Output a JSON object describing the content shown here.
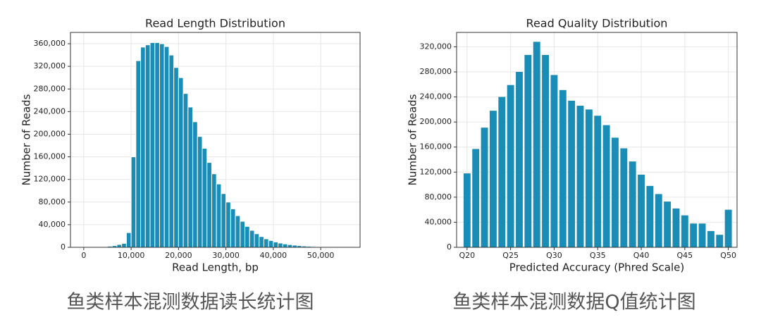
{
  "chart_data": [
    {
      "type": "histogram",
      "title": "Read Length Distribution",
      "x_label": "Read Length, bp",
      "y_label": "Number of Reads",
      "caption": "鱼类样本混测数据读长统计图",
      "color": "#1a8db6",
      "grid": true,
      "bins": [
        0,
        1000,
        2000,
        3000,
        4000,
        5000,
        6000,
        7000,
        8000,
        9000,
        10000,
        11000,
        12000,
        13000,
        14000,
        15000,
        16000,
        17000,
        18000,
        19000,
        20000,
        21000,
        22000,
        23000,
        24000,
        25000,
        26000,
        27000,
        28000,
        29000,
        30000,
        31000,
        32000,
        33000,
        34000,
        35000,
        36000,
        37000,
        38000,
        39000,
        40000,
        41000,
        42000,
        43000,
        44000,
        45000,
        46000,
        47000,
        48000,
        49000,
        50000,
        51000,
        52000,
        53000,
        54000,
        55000,
        56000
      ],
      "values": [
        0,
        0,
        200,
        500,
        1000,
        2000,
        3000,
        5000,
        7000,
        26000,
        160000,
        330000,
        354000,
        358000,
        362000,
        362000,
        360000,
        355000,
        340000,
        318000,
        300000,
        272000,
        248000,
        222000,
        196000,
        175000,
        150000,
        130000,
        112000,
        95000,
        80000,
        68000,
        56000,
        46000,
        37000,
        30000,
        24000,
        19000,
        15000,
        12000,
        9500,
        7500,
        6000,
        4800,
        3800,
        3000,
        2300,
        1800,
        1400,
        1100,
        900,
        700,
        500,
        400,
        300,
        200
      ],
      "xlim": [
        -2800,
        58300
      ],
      "xticks": [
        0,
        {
          "value": 10000,
          "label": "10,000"
        },
        {
          "value": 20000,
          "label": "20,000"
        },
        {
          "value": 30000,
          "label": "30,000"
        },
        {
          "value": 40000,
          "label": "40,000"
        },
        {
          "value": 50000,
          "label": "50,000"
        }
      ],
      "ylim": [
        0,
        380000
      ],
      "yticks": [
        0,
        {
          "value": 40000,
          "label": "40,000"
        },
        {
          "value": 80000,
          "label": "80,000"
        },
        {
          "value": 120000,
          "label": "120,000"
        },
        {
          "value": 160000,
          "label": "160,000"
        },
        {
          "value": 200000,
          "label": "200,000"
        },
        {
          "value": 240000,
          "label": "240,000"
        },
        {
          "value": 280000,
          "label": "280,000"
        },
        {
          "value": 320000,
          "label": "320,000"
        },
        {
          "value": 360000,
          "label": "360,000"
        }
      ]
    },
    {
      "type": "bar",
      "title": "Read Quality Distribution",
      "x_label": "Predicted Accuracy (Phred Scale)",
      "y_label": "Number of Reads",
      "caption": "鱼类样本混测数据Q值统计图",
      "color": "#1a8db6",
      "grid": true,
      "x": [
        20,
        21,
        22,
        23,
        24,
        25,
        26,
        27,
        28,
        29,
        30,
        31,
        32,
        33,
        34,
        35,
        36,
        37,
        38,
        39,
        40,
        41,
        42,
        43,
        44,
        45,
        46,
        47,
        48,
        49,
        50
      ],
      "values": [
        118000,
        157000,
        191000,
        218000,
        240000,
        259000,
        280000,
        307000,
        328000,
        307000,
        275000,
        251000,
        234000,
        226000,
        220000,
        210000,
        195000,
        175000,
        158000,
        137000,
        116000,
        98000,
        85000,
        73000,
        62000,
        51000,
        38000,
        38000,
        26000,
        20000,
        60000
      ],
      "xlim": [
        18.8,
        51
      ],
      "xticks": [
        {
          "value": 20,
          "label": "Q20"
        },
        {
          "value": 25,
          "label": "Q25"
        },
        {
          "value": 30,
          "label": "Q30"
        },
        {
          "value": 35,
          "label": "Q35"
        },
        {
          "value": 40,
          "label": "Q40"
        },
        {
          "value": 45,
          "label": "Q45"
        },
        {
          "value": 50,
          "label": "Q50"
        }
      ],
      "ylim": [
        0,
        343000
      ],
      "yticks": [
        0,
        {
          "value": 40000,
          "label": "40,000"
        },
        {
          "value": 80000,
          "label": "80,000"
        },
        {
          "value": 120000,
          "label": "120,000"
        },
        {
          "value": 160000,
          "label": "160,000"
        },
        {
          "value": 200000,
          "label": "200,000"
        },
        {
          "value": 240000,
          "label": "240,000"
        },
        {
          "value": 280000,
          "label": "280,000"
        },
        {
          "value": 320000,
          "label": "320,000"
        }
      ]
    }
  ]
}
